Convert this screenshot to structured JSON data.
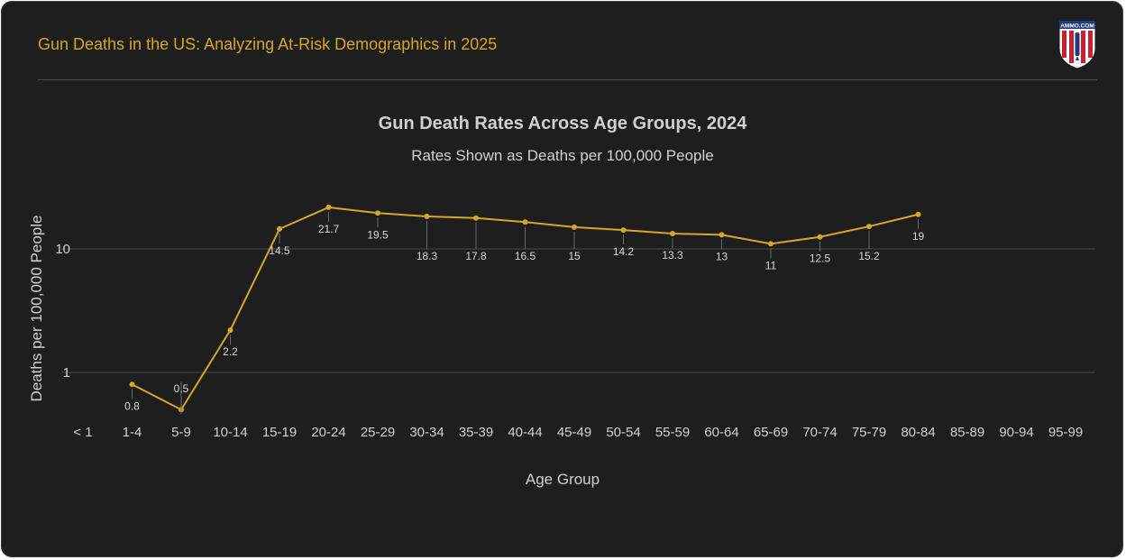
{
  "header": {
    "title": "Gun Deaths in the US: Analyzing At-Risk Demographics in 2025",
    "logo_text": "AMMO.COM"
  },
  "colors": {
    "background": "#1e1e1e",
    "accent": "#d4a62a",
    "line": "#d4a62a",
    "text": "#d0d0d0",
    "grid": "#4a4a4a"
  },
  "chart_data": {
    "type": "line",
    "title": "Gun Death Rates Across Age Groups, 2024",
    "subtitle": "Rates Shown as Deaths per 100,000 People",
    "xlabel": "Age Group",
    "ylabel": "Deaths per 100,000 People",
    "y_scale": "log",
    "y_ticks": [
      1,
      10
    ],
    "ylim": [
      0.4,
      40
    ],
    "grid": true,
    "categories": [
      "< 1",
      "1-4",
      "5-9",
      "10-14",
      "15-19",
      "20-24",
      "25-29",
      "30-34",
      "35-39",
      "40-44",
      "45-49",
      "50-54",
      "55-59",
      "60-64",
      "65-69",
      "70-74",
      "75-79",
      "80-84",
      "85-89",
      "90-94",
      "95-99"
    ],
    "series": [
      {
        "values": [
          null,
          0.8,
          0.5,
          2.2,
          14.5,
          21.7,
          19.5,
          18.3,
          17.8,
          16.5,
          15,
          14.2,
          13.3,
          13,
          11,
          12.5,
          15.2,
          19,
          null,
          null,
          null
        ]
      }
    ],
    "data_labels": [
      "",
      "0.8",
      "0.5",
      "2.2",
      "14.5",
      "21.7",
      "19.5",
      "18.3",
      "17.8",
      "16.5",
      "15",
      "14.2",
      "13.3",
      "13",
      "11",
      "12.5",
      "15.2",
      "19",
      "",
      "",
      ""
    ]
  }
}
